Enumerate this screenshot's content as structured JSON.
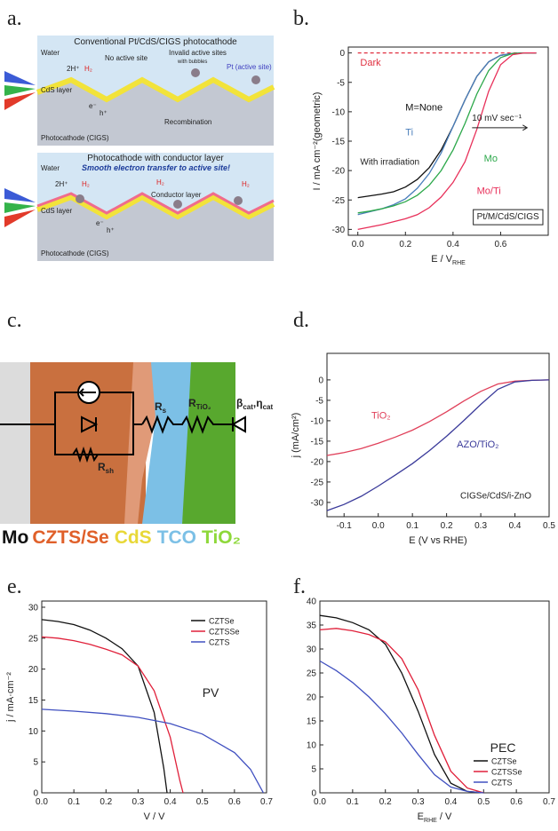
{
  "panel_a": {
    "label": "a.",
    "top": {
      "title": "Conventional Pt/CdS/CIGS photocathode",
      "water": "Water",
      "proton": "2H⁺",
      "h2": "H₂",
      "no_active": "No active site",
      "invalid": [
        "Invalid active sites",
        "with bubbles"
      ],
      "pt": "Pt (active site)",
      "cds": "CdS layer",
      "electron": "e⁻",
      "hole": "h⁺",
      "recombination": "Recombination",
      "cathode": "Photocathode (CIGS)"
    },
    "bottom": {
      "title": "Photocathode with conductor layer",
      "water": "Water",
      "slogan": "Smooth electron transfer to active site!",
      "proton": "2H⁺",
      "h2": [
        "H₂",
        "H₂",
        "H₂"
      ],
      "conductor": "Conductor layer",
      "cds": "CdS layer",
      "electron": "e⁻",
      "hole": "h⁺",
      "cathode": "Photocathode (CIGS)"
    }
  },
  "panel_c": {
    "label": "c.",
    "rs": [
      "R",
      "s"
    ],
    "rtio2": [
      "R",
      "TiO₂"
    ],
    "cat": [
      "β",
      "cat",
      ",η",
      "cat"
    ],
    "rsh": [
      "R",
      "sh"
    ],
    "layers": [
      "Mo",
      "CZTS/Se",
      "CdS",
      "TCO",
      "TiO₂"
    ]
  },
  "chart_data": [
    {
      "type": "line",
      "panel_label": "b.",
      "ylabel": "I / mA cm⁻²(geometric)",
      "xlabel": [
        "E / V",
        "RHE"
      ],
      "xlim": [
        -0.04,
        0.8
      ],
      "ylim": [
        -31,
        1
      ],
      "xticks": [
        {
          "value": 0,
          "label": "0.0"
        },
        0.2,
        0.4,
        0.6
      ],
      "yticks": [
        0,
        -5,
        -10,
        -15,
        -20,
        -25,
        -30
      ],
      "x": [
        0,
        0.05,
        0.1,
        0.15,
        0.2,
        0.25,
        0.3,
        0.35,
        0.4,
        0.45,
        0.5,
        0.55,
        0.6,
        0.65,
        0.7,
        0.75
      ],
      "legend": "inline",
      "series": [
        {
          "name": "Dark",
          "color": "#e03040",
          "style": "dashed",
          "values": [
            0,
            0,
            0,
            0,
            0,
            0,
            0,
            0,
            0,
            0,
            0,
            0,
            0,
            0,
            0,
            0
          ]
        },
        {
          "name": "M=None",
          "color": "#111111",
          "values": [
            -24.6,
            -24.3,
            -24.0,
            -23.6,
            -22.8,
            -21.5,
            -19.5,
            -16.5,
            -12.5,
            -8,
            -4,
            -1.5,
            -0.4,
            -0.1,
            0,
            0
          ]
        },
        {
          "name": "Ti",
          "color": "#4a7ebb",
          "values": [
            -27.5,
            -27,
            -26.5,
            -25.8,
            -24.8,
            -23,
            -20.5,
            -17,
            -12.5,
            -8,
            -4,
            -1.5,
            -0.4,
            -0.1,
            0,
            0
          ]
        },
        {
          "name": "Mo",
          "color": "#2ca84a",
          "values": [
            -27.2,
            -26.9,
            -26.5,
            -26,
            -25.3,
            -24.2,
            -22.5,
            -20,
            -16.5,
            -12,
            -7,
            -3,
            -0.8,
            -0.1,
            0,
            0
          ]
        },
        {
          "name": "Mo/Ti",
          "color": "#e8305a",
          "values": [
            -30,
            -29.6,
            -29.2,
            -28.7,
            -28.2,
            -27.5,
            -26.3,
            -24.5,
            -22,
            -18.5,
            -13,
            -6.5,
            -2,
            -0.3,
            0,
            0
          ]
        }
      ],
      "annotations": [
        "With irradiation",
        "10 mV sec⁻¹",
        "Pt/M/CdS/CIGS"
      ]
    },
    {
      "type": "line",
      "panel_label": "d.",
      "ylabel": "j (mA/cm²)",
      "xlabel": "E (V vs RHE)",
      "xlim": [
        -0.15,
        0.5
      ],
      "ylim": [
        -33.5,
        6.5
      ],
      "xticks": [
        -0.1,
        {
          "value": 0,
          "label": "0.0"
        },
        0.1,
        0.2,
        0.3,
        0.4,
        0.5
      ],
      "yticks": [
        0,
        -5,
        -10,
        -15,
        -20,
        -25,
        -30
      ],
      "x": [
        -0.15,
        -0.1,
        -0.05,
        0,
        0.05,
        0.1,
        0.15,
        0.2,
        0.25,
        0.3,
        0.35,
        0.4,
        0.45,
        0.5
      ],
      "legend": "inline",
      "series": [
        {
          "name": "TiO₂",
          "color": "#e0405a",
          "values": [
            -18.5,
            -17.8,
            -16.8,
            -15.5,
            -14,
            -12.3,
            -10.2,
            -7.8,
            -5.2,
            -2.8,
            -1,
            -0.3,
            -0.1,
            0
          ]
        },
        {
          "name": "AZO/TiO₂",
          "color": "#3a3a9a",
          "values": [
            -32,
            -30.5,
            -28.5,
            -26,
            -23.3,
            -20.5,
            -17.3,
            -13.8,
            -10,
            -6,
            -2.3,
            -0.5,
            -0.1,
            0
          ]
        }
      ],
      "annotations": [
        "CIGSe/CdS/i-ZnO"
      ]
    },
    {
      "type": "line",
      "panel_label": "e.",
      "ylabel": "j / mA·cm⁻²",
      "xlabel": "V / V",
      "xlim": [
        0,
        0.7
      ],
      "ylim": [
        0,
        31
      ],
      "xticks": [
        {
          "value": 0,
          "label": "0.0"
        },
        0.1,
        0.2,
        0.3,
        0.4,
        0.5,
        0.6,
        0.7
      ],
      "yticks": [
        0,
        5,
        10,
        15,
        20,
        25,
        30
      ],
      "legend": "upper right",
      "series": [
        {
          "name": "CZTSe",
          "color": "#111111",
          "x": [
            0,
            0.05,
            0.1,
            0.15,
            0.2,
            0.25,
            0.3,
            0.35,
            0.38,
            0.39
          ],
          "values": [
            28,
            27.7,
            27.2,
            26.3,
            25,
            23.3,
            20.5,
            13,
            4,
            0
          ]
        },
        {
          "name": "CZTSSe",
          "color": "#e0203a",
          "x": [
            0,
            0.05,
            0.1,
            0.15,
            0.2,
            0.25,
            0.3,
            0.35,
            0.4,
            0.43,
            0.44
          ],
          "values": [
            25.2,
            25,
            24.6,
            24,
            23.2,
            22.3,
            20.5,
            16.5,
            9,
            2,
            0
          ]
        },
        {
          "name": "CZTS",
          "color": "#4050c0",
          "x": [
            0,
            0.1,
            0.2,
            0.3,
            0.4,
            0.5,
            0.6,
            0.65,
            0.69
          ],
          "values": [
            13.5,
            13.2,
            12.8,
            12.2,
            11.2,
            9.5,
            6.5,
            3.8,
            0
          ]
        }
      ],
      "annotations": [
        "PV"
      ]
    },
    {
      "type": "line",
      "panel_label": "f.",
      "xlabel": [
        "E",
        "RHE",
        " / V"
      ],
      "xlim": [
        0,
        0.7
      ],
      "ylim": [
        0,
        40
      ],
      "xticks": [
        {
          "value": 0,
          "label": "0.0"
        },
        0.1,
        0.2,
        0.3,
        0.4,
        0.5,
        0.6,
        0.7
      ],
      "yticks": [
        0,
        5,
        10,
        15,
        20,
        25,
        30,
        35,
        40
      ],
      "x": [
        0,
        0.05,
        0.1,
        0.15,
        0.2,
        0.25,
        0.3,
        0.35,
        0.4,
        0.45,
        0.5
      ],
      "legend": "lower right",
      "series": [
        {
          "name": "CZTSe",
          "color": "#111111",
          "values": [
            37,
            36.5,
            35.5,
            34,
            31,
            25,
            17,
            8,
            2,
            0.3,
            0
          ]
        },
        {
          "name": "CZTSSe",
          "color": "#e0203a",
          "values": [
            34,
            34.3,
            33.8,
            33,
            31.5,
            28,
            21.5,
            12,
            4.5,
            1,
            0
          ]
        },
        {
          "name": "CZTS",
          "color": "#4050c0",
          "values": [
            27.5,
            25.5,
            23,
            20,
            16.5,
            12.5,
            8,
            3.8,
            1.2,
            0.3,
            0
          ]
        }
      ],
      "annotations": [
        "PEC"
      ]
    }
  ]
}
